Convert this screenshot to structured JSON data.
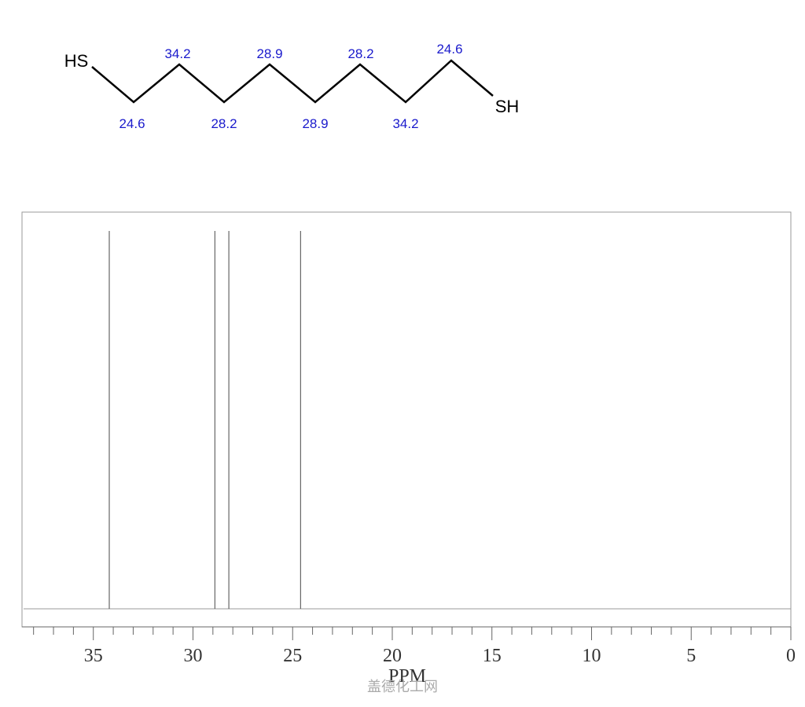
{
  "molecule": {
    "left_group": "HS",
    "right_group": "SH",
    "shifts": [
      "24.6",
      "34.2",
      "28.2",
      "28.9",
      "28.9",
      "28.2",
      "34.2",
      "24.6"
    ]
  },
  "chart_data": {
    "type": "stick",
    "x_label": "PPM",
    "x": [
      34.2,
      28.9,
      28.2,
      24.6
    ],
    "values": [
      100,
      100,
      100,
      100
    ],
    "color": "#666666",
    "xlim": [
      38.5,
      0
    ],
    "ylim": [
      0,
      105
    ],
    "xticks": [
      35,
      30,
      25,
      20,
      15,
      10,
      5,
      0
    ],
    "xminorticks": [
      38,
      37,
      36,
      34,
      33,
      32,
      31,
      29,
      28,
      27,
      26,
      24,
      23,
      22,
      21,
      19,
      18,
      17,
      16,
      14,
      13,
      12,
      11,
      9,
      8,
      7,
      6,
      4,
      3,
      2,
      1
    ]
  },
  "watermark": "盖德化工网"
}
